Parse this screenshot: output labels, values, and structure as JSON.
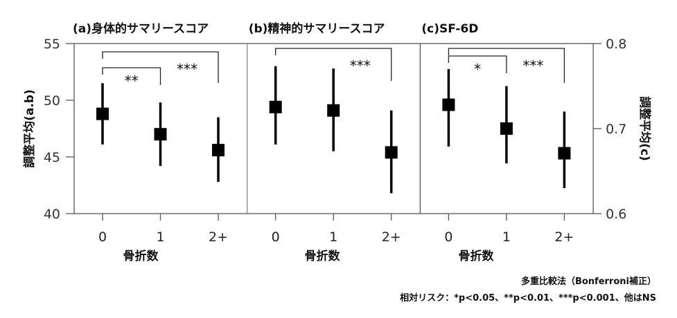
{
  "chart_data": {
    "type": "scatter",
    "subtype": "point-with-error-bars",
    "xlabel": "骨折数",
    "ylabel_left": "調整平均(a.b)",
    "ylabel_right": "調整平均(c)",
    "ylim_left": [
      40,
      55
    ],
    "yticks_left": [
      "40",
      "45",
      "50",
      "55"
    ],
    "ylim_right": [
      0.6,
      0.8
    ],
    "yticks_right": [
      "0.6",
      "0.7",
      "0.8"
    ],
    "categories": [
      "0",
      "1",
      "2+"
    ],
    "colors": {
      "marker": "#000000",
      "axis": "#555555"
    },
    "panels": [
      {
        "title": "(a)身体的サマリースコア",
        "axis": "left",
        "points": [
          {
            "x": "0",
            "y": 48.8,
            "low": 46.1,
            "high": 51.5
          },
          {
            "x": "1",
            "y": 47.0,
            "low": 44.2,
            "high": 49.8
          },
          {
            "x": "2+",
            "y": 45.6,
            "low": 42.8,
            "high": 48.5
          }
        ],
        "brackets": [
          {
            "from": "0",
            "to": "1",
            "label": "**"
          },
          {
            "from": "0",
            "to": "2+",
            "label": "***"
          }
        ]
      },
      {
        "title": "(b)精神的サマリースコア",
        "axis": "left",
        "points": [
          {
            "x": "0",
            "y": 49.4,
            "low": 46.1,
            "high": 53.0
          },
          {
            "x": "1",
            "y": 49.1,
            "low": 45.5,
            "high": 52.8
          },
          {
            "x": "2+",
            "y": 45.4,
            "low": 41.8,
            "high": 49.1
          }
        ],
        "brackets": [
          {
            "from": "0",
            "to": "2+",
            "label": "***"
          }
        ]
      },
      {
        "title": "(c)SF-6D",
        "axis": "right",
        "points": [
          {
            "x": "0",
            "y": 0.728,
            "low": 0.679,
            "high": 0.77
          },
          {
            "x": "1",
            "y": 0.7,
            "low": 0.659,
            "high": 0.75
          },
          {
            "x": "2+",
            "y": 0.671,
            "low": 0.63,
            "high": 0.72
          }
        ],
        "brackets": [
          {
            "from": "0",
            "to": "1",
            "label": "*"
          },
          {
            "from": "0",
            "to": "2+",
            "label": "***"
          }
        ]
      }
    ]
  },
  "footnote": {
    "method": "多重比較法（Bonferroni補正）",
    "risk": "相対リスク：*p<0.05、**p<0.01、***p<0.001、他はNS"
  }
}
